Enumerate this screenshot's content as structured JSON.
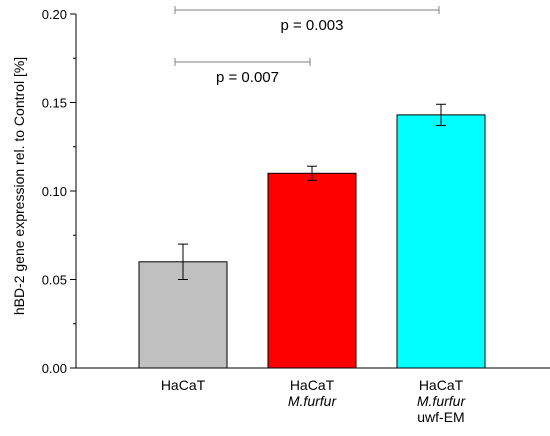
{
  "chart_data": {
    "type": "bar",
    "title": "",
    "xlabel": "",
    "ylabel": "hBD-2 gene expression rel. to Control [%]",
    "ylim": [
      0,
      0.2
    ],
    "yticks": [
      "0.00",
      "0.05",
      "0.10",
      "0.15",
      "0.20"
    ],
    "grid": false,
    "categories": [
      {
        "lines": [
          "HaCaT"
        ],
        "italic": [
          false
        ]
      },
      {
        "lines": [
          "HaCaT",
          "M.furfur"
        ],
        "italic": [
          false,
          true
        ]
      },
      {
        "lines": [
          "HaCaT",
          "M.furfur",
          "uwf-EM"
        ],
        "italic": [
          false,
          true,
          false
        ]
      }
    ],
    "values": [
      0.06,
      0.11,
      0.143
    ],
    "errors": [
      0.01,
      0.004,
      0.006
    ],
    "colors": [
      "#c0c0c0",
      "#ff0000",
      "#00ffff"
    ],
    "comparisons": [
      {
        "from": 0,
        "to": 1,
        "label": "p = 0.007"
      },
      {
        "from": 0,
        "to": 2,
        "label": "p = 0.003"
      }
    ]
  }
}
